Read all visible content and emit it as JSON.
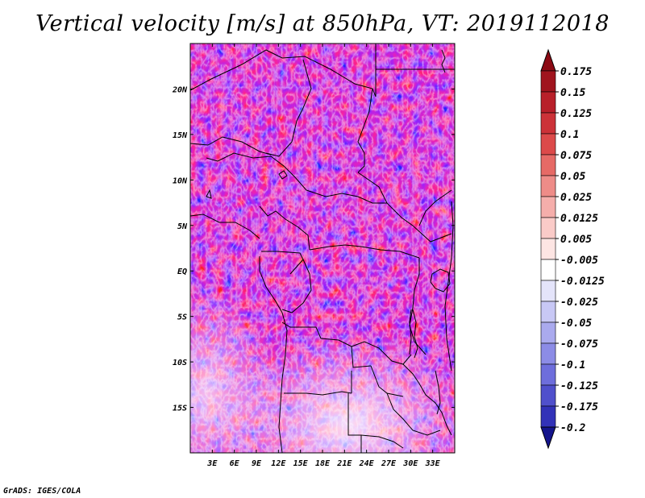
{
  "title": "Vertical velocity [m/s] at 850hPa, VT: 2019112018",
  "footer": "GrADS: IGES/COLA",
  "map": {
    "lon_range": [
      0,
      36
    ],
    "lat_range": [
      -20,
      25
    ],
    "lon_ticks": [
      {
        "value": 3,
        "label": "3E"
      },
      {
        "value": 6,
        "label": "6E"
      },
      {
        "value": 9,
        "label": "9E"
      },
      {
        "value": 12,
        "label": "12E"
      },
      {
        "value": 15,
        "label": "15E"
      },
      {
        "value": 18,
        "label": "18E"
      },
      {
        "value": 21,
        "label": "21E"
      },
      {
        "value": 24,
        "label": "24E"
      },
      {
        "value": 27,
        "label": "27E"
      },
      {
        "value": 30,
        "label": "30E"
      },
      {
        "value": 33,
        "label": "33E"
      }
    ],
    "lat_ticks": [
      {
        "value": 20,
        "label": "20N"
      },
      {
        "value": 15,
        "label": "15N"
      },
      {
        "value": 10,
        "label": "10N"
      },
      {
        "value": 5,
        "label": "5N"
      },
      {
        "value": 0,
        "label": "EQ"
      },
      {
        "value": -5,
        "label": "5S"
      },
      {
        "value": -10,
        "label": "10S"
      },
      {
        "value": -15,
        "label": "15S"
      }
    ]
  },
  "colorbar": {
    "levels": [
      {
        "label": "0.175",
        "color": "#a0141e"
      },
      {
        "label": "0.15",
        "color": "#b8202a"
      },
      {
        "label": "0.125",
        "color": "#cc3238"
      },
      {
        "label": "0.1",
        "color": "#dc4a4a"
      },
      {
        "label": "0.075",
        "color": "#e66a66"
      },
      {
        "label": "0.05",
        "color": "#ee8c88"
      },
      {
        "label": "0.025",
        "color": "#f5aeab"
      },
      {
        "label": "0.0125",
        "color": "#facbc8"
      },
      {
        "label": "0.005",
        "color": "#fde5e3"
      },
      {
        "label": "-0.005",
        "color": "#ffffff"
      },
      {
        "label": "-0.0125",
        "color": "#e4e4fa"
      },
      {
        "label": "-0.025",
        "color": "#c8c8f5"
      },
      {
        "label": "-0.05",
        "color": "#aaaaee"
      },
      {
        "label": "-0.075",
        "color": "#8c8ce6"
      },
      {
        "label": "-0.1",
        "color": "#6e6edc"
      },
      {
        "label": "-0.125",
        "color": "#5050cc"
      },
      {
        "label": "-0.175",
        "color": "#3232b8"
      },
      {
        "label": "-0.2",
        "color": "#1e1ea0"
      }
    ],
    "top_color": "#8c0a14",
    "bottom_color": "#14148c"
  }
}
